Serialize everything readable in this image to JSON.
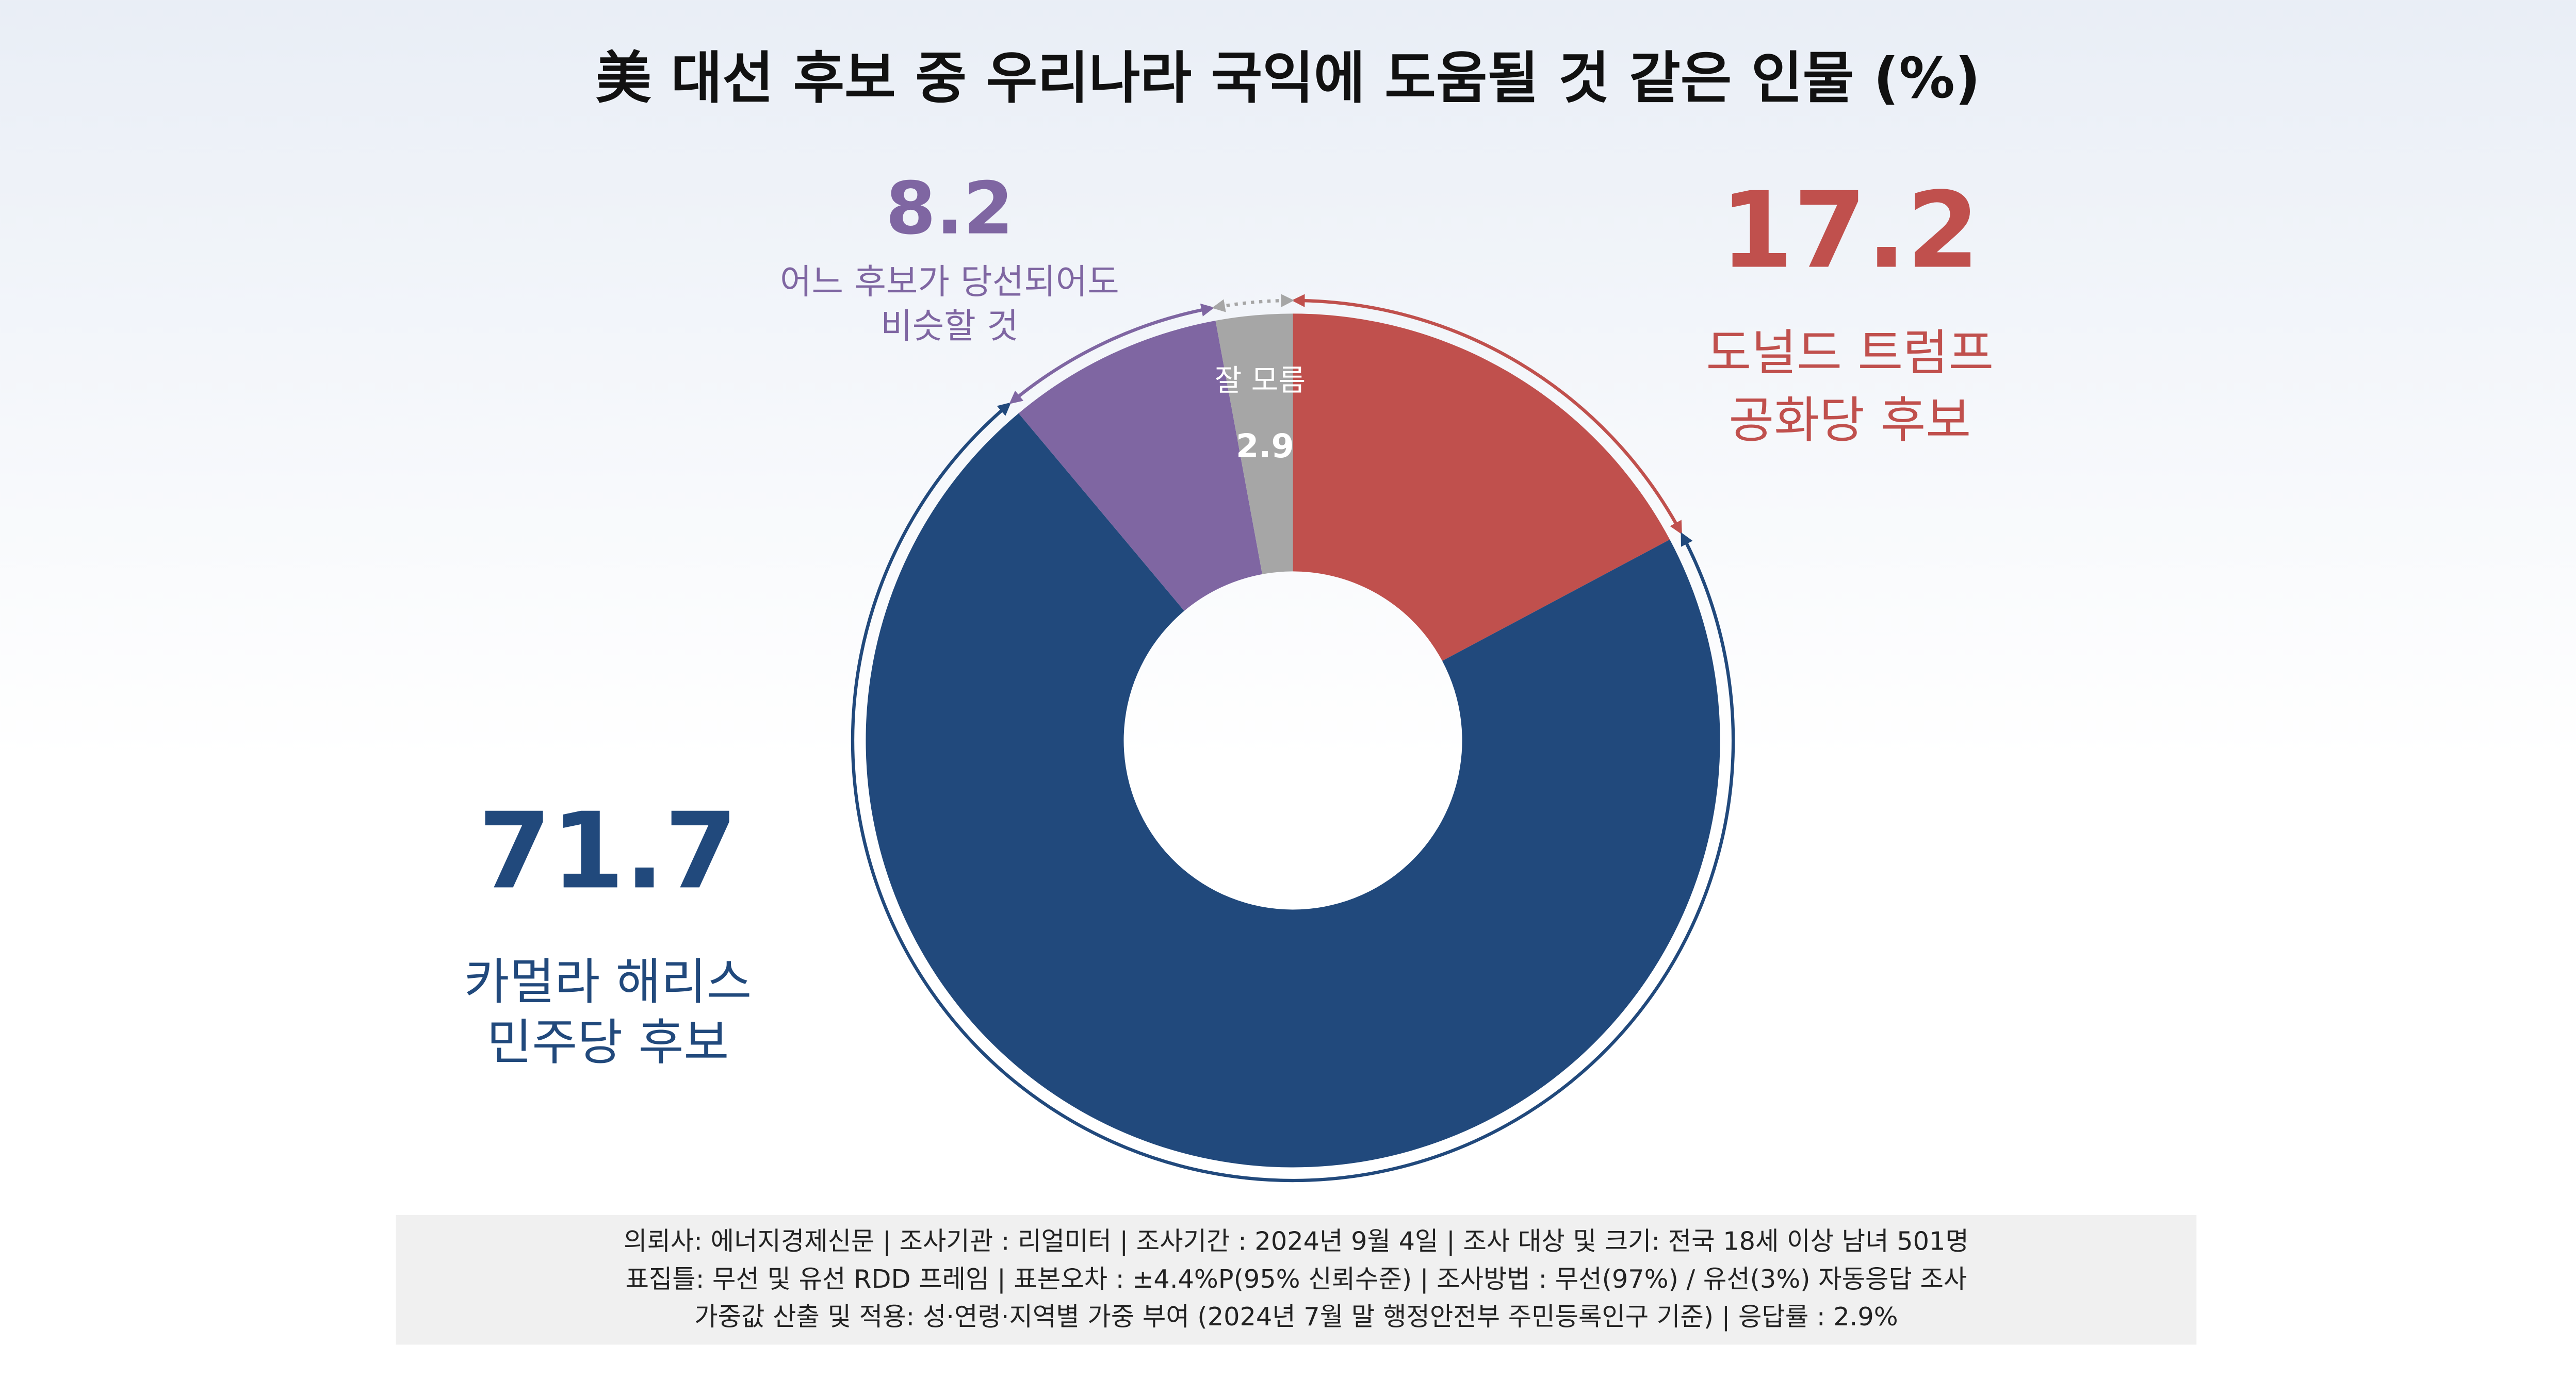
{
  "chart_data": {
    "type": "donut",
    "title": "美 대선 후보 중 우리나라 국익에 도움될 것 같은 인물 (%)",
    "categories": [
      [
        "도널드 트럼프",
        "공화당 후보"
      ],
      [
        "카멀라 해리스",
        "민주당 후보"
      ],
      [
        "어느 후보가 당선되어도",
        "비슷할 것"
      ],
      [
        "잘 모름"
      ]
    ],
    "values": [
      17.2,
      71.7,
      8.2,
      2.9
    ],
    "colors": [
      "#c0504d",
      "#21497c",
      "#7f66a2",
      "#a6a6a6"
    ],
    "footnote": [
      "의뢰사: 에너지경제신문 | 조사기관 : 리얼미터  |  조사기간 : 2024년 9월 4일 | 조사 대상 및 크기: 전국 18세 이상 남녀 501명",
      "표집틀: 무선 및 유선 RDD 프레임 | 표본오차 : ±4.4%P(95% 신뢰수준) | 조사방법 : 무선(97%) / 유선(3%) 자동응답 조사",
      "가중값 산출 및 적용: 성·연령·지역별 가중 부여 (2024년 7월 말 행정안전부 주민등록인구 기준) | 응답률 : 2.9%"
    ]
  }
}
